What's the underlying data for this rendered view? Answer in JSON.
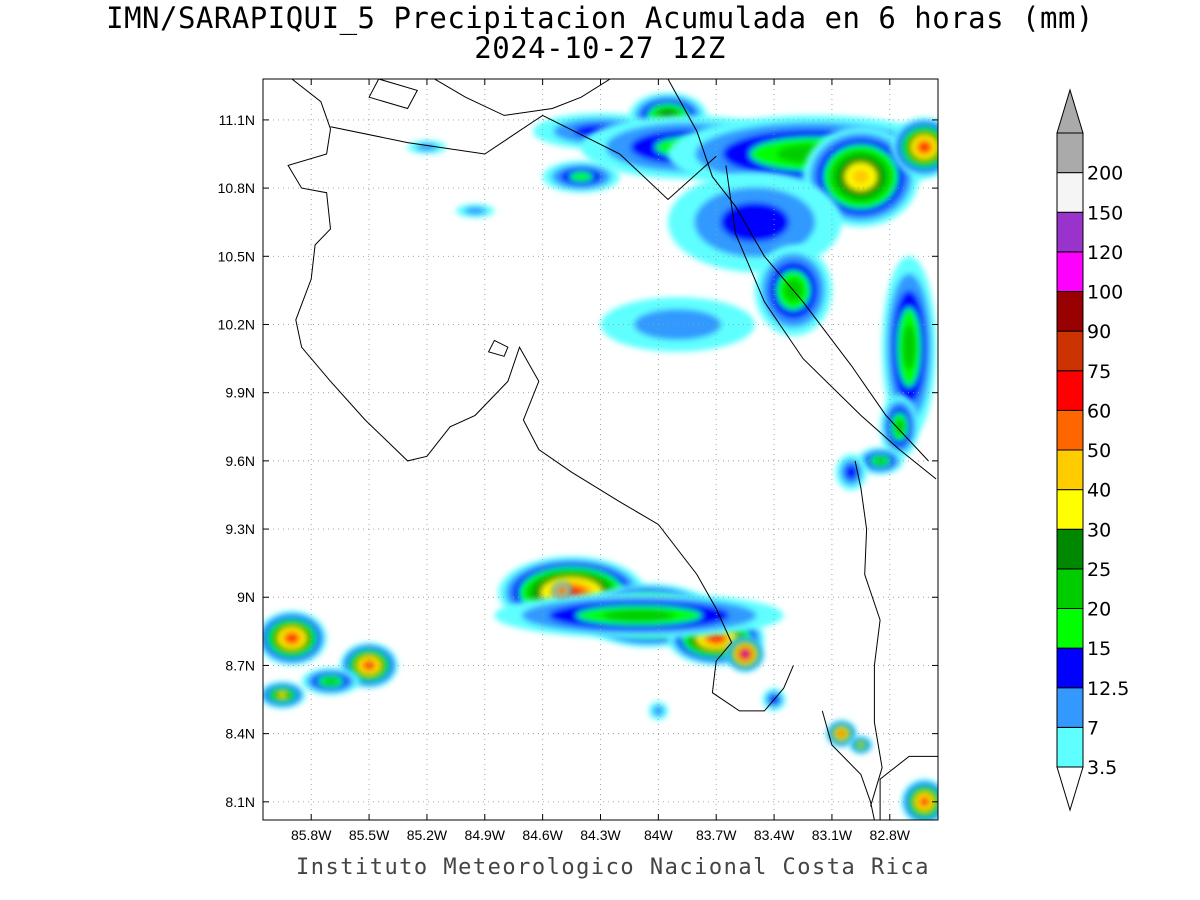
{
  "title": {
    "line1": "IMN/SARAPIQUI_5 Precipitacion Acumulada en 6 horas (mm)",
    "line2": "2024-10-27 12Z"
  },
  "credit": "Instituto Meteorologico Nacional Costa Rica",
  "map": {
    "lon_range": [
      -86.05,
      -82.55
    ],
    "lat_range": [
      8.02,
      11.28
    ],
    "grid": true,
    "lat_ticks": [
      {
        "value": 11.1,
        "label": "11.1N"
      },
      {
        "value": 10.8,
        "label": "10.8N"
      },
      {
        "value": 10.5,
        "label": "10.5N"
      },
      {
        "value": 10.2,
        "label": "10.2N"
      },
      {
        "value": 9.9,
        "label": "9.9N"
      },
      {
        "value": 9.6,
        "label": "9.6N"
      },
      {
        "value": 9.3,
        "label": "9.3N"
      },
      {
        "value": 9.0,
        "label": "9N"
      },
      {
        "value": 8.7,
        "label": "8.7N"
      },
      {
        "value": 8.4,
        "label": "8.4N"
      },
      {
        "value": 8.1,
        "label": "8.1N"
      }
    ],
    "lon_ticks": [
      {
        "value": -85.8,
        "label": "85.8W"
      },
      {
        "value": -85.5,
        "label": "85.5W"
      },
      {
        "value": -85.2,
        "label": "85.2W"
      },
      {
        "value": -84.9,
        "label": "84.9W"
      },
      {
        "value": -84.6,
        "label": "84.6W"
      },
      {
        "value": -84.3,
        "label": "84.3W"
      },
      {
        "value": -84.0,
        "label": "84W"
      },
      {
        "value": -83.7,
        "label": "83.7W"
      },
      {
        "value": -83.4,
        "label": "83.4W"
      },
      {
        "value": -83.1,
        "label": "83.1W"
      },
      {
        "value": -82.8,
        "label": "82.8W"
      }
    ]
  },
  "colorbar": {
    "units": "mm",
    "bins": [
      {
        "label": "3.5",
        "color": "#5effff"
      },
      {
        "label": "7",
        "color": "#3399ff"
      },
      {
        "label": "12.5",
        "color": "#0000ff"
      },
      {
        "label": "15",
        "color": "#00ff00"
      },
      {
        "label": "20",
        "color": "#00cc00"
      },
      {
        "label": "25",
        "color": "#008800"
      },
      {
        "label": "30",
        "color": "#ffff00"
      },
      {
        "label": "40",
        "color": "#ffcc00"
      },
      {
        "label": "50",
        "color": "#ff6600"
      },
      {
        "label": "60",
        "color": "#ff0000"
      },
      {
        "label": "75",
        "color": "#cc3300"
      },
      {
        "label": "90",
        "color": "#990000"
      },
      {
        "label": "100",
        "color": "#ff00ff"
      },
      {
        "label": "120",
        "color": "#9933cc"
      },
      {
        "label": "150",
        "color": "#f5f5f5"
      },
      {
        "label": "200",
        "color": "#aaaaaa"
      }
    ]
  },
  "precip_cells": [
    {
      "lon": -84.3,
      "lat": 11.05,
      "rx": 0.35,
      "ry": 0.08,
      "level": 2
    },
    {
      "lon": -83.95,
      "lat": 11.12,
      "rx": 0.2,
      "ry": 0.1,
      "level": 5
    },
    {
      "lon": -83.85,
      "lat": 10.98,
      "rx": 0.55,
      "ry": 0.14,
      "level": 3
    },
    {
      "lon": -84.4,
      "lat": 10.85,
      "rx": 0.2,
      "ry": 0.07,
      "level": 3
    },
    {
      "lon": -83.2,
      "lat": 10.95,
      "rx": 0.75,
      "ry": 0.17,
      "level": 4
    },
    {
      "lon": -82.95,
      "lat": 10.85,
      "rx": 0.3,
      "ry": 0.22,
      "level": 7
    },
    {
      "lon": -82.62,
      "lat": 10.98,
      "rx": 0.17,
      "ry": 0.13,
      "level": 9
    },
    {
      "lon": -83.5,
      "lat": 10.65,
      "rx": 0.45,
      "ry": 0.22,
      "level": 2
    },
    {
      "lon": -83.3,
      "lat": 10.35,
      "rx": 0.2,
      "ry": 0.2,
      "level": 4
    },
    {
      "lon": -83.9,
      "lat": 10.2,
      "rx": 0.4,
      "ry": 0.12,
      "level": 1
    },
    {
      "lon": -82.7,
      "lat": 10.1,
      "rx": 0.14,
      "ry": 0.4,
      "level": 4
    },
    {
      "lon": -82.75,
      "lat": 9.75,
      "rx": 0.1,
      "ry": 0.14,
      "level": 4
    },
    {
      "lon": -82.85,
      "lat": 9.6,
      "rx": 0.12,
      "ry": 0.06,
      "level": 4
    },
    {
      "lon": -83.0,
      "lat": 9.55,
      "rx": 0.08,
      "ry": 0.08,
      "level": 2
    },
    {
      "lon": -84.95,
      "lat": 10.7,
      "rx": 0.1,
      "ry": 0.03,
      "level": 1
    },
    {
      "lon": -85.2,
      "lat": 10.98,
      "rx": 0.1,
      "ry": 0.03,
      "level": 1
    },
    {
      "lon": -84.45,
      "lat": 9.02,
      "rx": 0.38,
      "ry": 0.16,
      "level": 9
    },
    {
      "lon": -84.05,
      "lat": 8.92,
      "rx": 0.35,
      "ry": 0.14,
      "level": 9
    },
    {
      "lon": -83.7,
      "lat": 8.82,
      "rx": 0.25,
      "ry": 0.12,
      "level": 9
    },
    {
      "lon": -84.1,
      "lat": 8.92,
      "rx": 0.75,
      "ry": 0.1,
      "level": 4
    },
    {
      "lon": -83.55,
      "lat": 8.75,
      "rx": 0.1,
      "ry": 0.08,
      "level": 12
    },
    {
      "lon": -84.5,
      "lat": 9.03,
      "rx": 0.05,
      "ry": 0.04,
      "level": 12
    },
    {
      "lon": -85.9,
      "lat": 8.82,
      "rx": 0.18,
      "ry": 0.12,
      "level": 9
    },
    {
      "lon": -85.5,
      "lat": 8.7,
      "rx": 0.15,
      "ry": 0.1,
      "level": 9
    },
    {
      "lon": -85.7,
      "lat": 8.63,
      "rx": 0.15,
      "ry": 0.06,
      "level": 4
    },
    {
      "lon": -85.95,
      "lat": 8.57,
      "rx": 0.12,
      "ry": 0.06,
      "level": 6
    },
    {
      "lon": -83.05,
      "lat": 8.4,
      "rx": 0.08,
      "ry": 0.06,
      "level": 9
    },
    {
      "lon": -82.95,
      "lat": 8.35,
      "rx": 0.06,
      "ry": 0.04,
      "level": 6
    },
    {
      "lon": -82.62,
      "lat": 8.1,
      "rx": 0.12,
      "ry": 0.1,
      "level": 9
    },
    {
      "lon": -83.4,
      "lat": 8.55,
      "rx": 0.06,
      "ry": 0.05,
      "level": 2
    },
    {
      "lon": -84.0,
      "lat": 8.5,
      "rx": 0.05,
      "ry": 0.04,
      "level": 1
    }
  ],
  "coastlines": [
    [
      [
        -85.9,
        11.28
      ],
      [
        -85.75,
        11.18
      ],
      [
        -85.7,
        11.06
      ],
      [
        -85.72,
        10.95
      ],
      [
        -85.92,
        10.9
      ],
      [
        -85.85,
        10.8
      ],
      [
        -85.72,
        10.78
      ],
      [
        -85.7,
        10.62
      ],
      [
        -85.78,
        10.55
      ],
      [
        -85.8,
        10.4
      ],
      [
        -85.88,
        10.22
      ],
      [
        -85.85,
        10.1
      ],
      [
        -85.7,
        9.95
      ],
      [
        -85.52,
        9.78
      ],
      [
        -85.3,
        9.6
      ],
      [
        -85.2,
        9.62
      ],
      [
        -85.08,
        9.75
      ],
      [
        -84.95,
        9.8
      ],
      [
        -84.78,
        9.95
      ],
      [
        -84.72,
        10.1
      ],
      [
        -84.62,
        9.95
      ],
      [
        -84.7,
        9.78
      ],
      [
        -84.62,
        9.65
      ],
      [
        -84.45,
        9.55
      ],
      [
        -84.2,
        9.42
      ],
      [
        -84.0,
        9.32
      ],
      [
        -83.8,
        9.1
      ],
      [
        -83.7,
        8.95
      ],
      [
        -83.62,
        8.8
      ],
      [
        -83.7,
        8.72
      ],
      [
        -83.72,
        8.58
      ],
      [
        -83.58,
        8.5
      ],
      [
        -83.45,
        8.5
      ],
      [
        -83.35,
        8.6
      ],
      [
        -83.3,
        8.7
      ]
    ],
    [
      [
        -83.15,
        8.5
      ],
      [
        -83.1,
        8.35
      ],
      [
        -82.95,
        8.22
      ],
      [
        -82.9,
        8.1
      ],
      [
        -82.88,
        8.02
      ]
    ],
    [
      [
        -82.85,
        8.02
      ],
      [
        -82.85,
        8.2
      ],
      [
        -82.7,
        8.3
      ],
      [
        -82.55,
        8.3
      ]
    ],
    [
      [
        -85.2,
        11.3
      ],
      [
        -85.0,
        11.2
      ],
      [
        -84.8,
        11.12
      ],
      [
        -84.55,
        11.15
      ],
      [
        -84.4,
        11.2
      ],
      [
        -84.25,
        11.28
      ]
    ],
    [
      [
        -83.95,
        11.28
      ],
      [
        -83.8,
        11.05
      ],
      [
        -83.72,
        10.85
      ],
      [
        -83.6,
        10.72
      ],
      [
        -83.45,
        10.5
      ],
      [
        -83.25,
        10.3
      ],
      [
        -83.0,
        10.02
      ],
      [
        -82.82,
        9.8
      ],
      [
        -82.6,
        9.6
      ]
    ]
  ],
  "borders": [
    [
      [
        -85.7,
        11.07
      ],
      [
        -85.3,
        11.0
      ],
      [
        -84.9,
        10.95
      ],
      [
        -84.6,
        11.12
      ],
      [
        -84.2,
        10.95
      ],
      [
        -83.95,
        10.75
      ],
      [
        -83.7,
        10.94
      ]
    ],
    [
      [
        -83.65,
        10.9
      ],
      [
        -83.6,
        10.6
      ],
      [
        -83.45,
        10.3
      ],
      [
        -83.25,
        10.05
      ],
      [
        -82.95,
        9.8
      ],
      [
        -82.75,
        9.65
      ],
      [
        -82.56,
        9.52
      ]
    ],
    [
      [
        -82.98,
        9.6
      ],
      [
        -82.95,
        9.48
      ],
      [
        -82.92,
        9.3
      ],
      [
        -82.93,
        9.1
      ],
      [
        -82.85,
        8.9
      ],
      [
        -82.88,
        8.7
      ],
      [
        -82.88,
        8.45
      ],
      [
        -82.84,
        8.25
      ],
      [
        -82.9,
        8.08
      ]
    ]
  ],
  "lakes": [
    [
      [
        -85.5,
        11.2
      ],
      [
        -85.3,
        11.15
      ],
      [
        -85.25,
        11.23
      ],
      [
        -85.45,
        11.28
      ]
    ],
    [
      [
        -84.85,
        10.13
      ],
      [
        -84.78,
        10.1
      ],
      [
        -84.8,
        10.06
      ],
      [
        -84.88,
        10.08
      ]
    ]
  ]
}
